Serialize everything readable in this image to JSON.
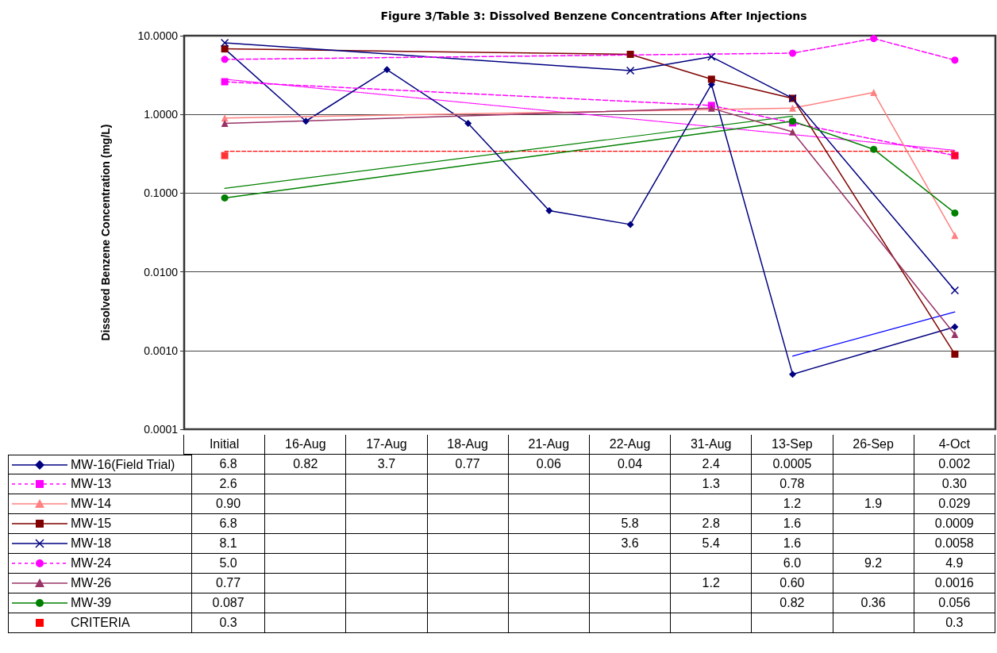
{
  "chart_data": {
    "type": "line",
    "title": "Figure 3/Table 3: Dissolved Benzene Concentrations After Injections",
    "ylabel": "Dissolved Benzene Concentration (mg/L)",
    "categories": [
      "Initial",
      "16-Aug",
      "17-Aug",
      "18-Aug",
      "21-Aug",
      "22-Aug",
      "31-Aug",
      "13-Sep",
      "26-Sep",
      "4-Oct"
    ],
    "log": "y",
    "ylim": [
      0.0001,
      10
    ],
    "yticks": [
      {
        "value": 0.0001,
        "label": "0.0001"
      },
      {
        "value": 0.001,
        "label": "0.0010"
      },
      {
        "value": 0.01,
        "label": "0.0100"
      },
      {
        "value": 0.1,
        "label": "0.1000"
      },
      {
        "value": 1,
        "label": "1.0000"
      },
      {
        "value": 10,
        "label": "10.0000"
      }
    ],
    "grid": "y",
    "legend": "bottom",
    "series": [
      {
        "name": "MW-16(Field Trial)",
        "color": "#000080",
        "marker": "diamond",
        "line_style": "solid",
        "values": [
          6.8,
          0.82,
          3.7,
          0.77,
          0.06,
          0.04,
          2.4,
          0.0005,
          null,
          0.002
        ],
        "value_labels": [
          "6.8",
          "0.82",
          "3.7",
          "0.77",
          "0.06",
          "0.04",
          "2.4",
          "0.0005",
          null,
          "0.002"
        ]
      },
      {
        "name": "MW-13",
        "color": "#ff00ff",
        "marker": "square",
        "line_style": "dashed",
        "values": [
          2.6,
          null,
          null,
          null,
          null,
          null,
          1.3,
          0.78,
          null,
          0.3
        ],
        "value_labels": [
          "2.6",
          null,
          null,
          null,
          null,
          null,
          "1.3",
          "0.78",
          null,
          "0.30"
        ]
      },
      {
        "name": "MW-14",
        "color": "#ff8080",
        "marker": "triangle",
        "line_style": "solid",
        "values": [
          0.9,
          null,
          null,
          null,
          null,
          null,
          null,
          1.2,
          1.9,
          0.029
        ],
        "value_labels": [
          "0.90",
          null,
          null,
          null,
          null,
          null,
          null,
          "1.2",
          "1.9",
          "0.029"
        ]
      },
      {
        "name": "MW-15",
        "color": "#800000",
        "marker": "square",
        "line_style": "solid",
        "values": [
          6.8,
          null,
          null,
          null,
          null,
          5.8,
          2.8,
          1.6,
          null,
          0.0009
        ],
        "value_labels": [
          "6.8",
          null,
          null,
          null,
          null,
          "5.8",
          "2.8",
          "1.6",
          null,
          "0.0009"
        ]
      },
      {
        "name": "MW-18",
        "color": "#000080",
        "marker": "cross",
        "line_style": "solid",
        "values": [
          8.1,
          null,
          null,
          null,
          null,
          3.6,
          5.4,
          1.6,
          null,
          0.0058
        ],
        "value_labels": [
          "8.1",
          null,
          null,
          null,
          null,
          "3.6",
          "5.4",
          "1.6",
          null,
          "0.0058"
        ]
      },
      {
        "name": "MW-24",
        "color": "#ff00ff",
        "marker": "circle",
        "line_style": "dashed",
        "values": [
          5.0,
          null,
          null,
          null,
          null,
          null,
          null,
          6.0,
          9.2,
          4.9
        ],
        "value_labels": [
          "5.0",
          null,
          null,
          null,
          null,
          null,
          null,
          "6.0",
          "9.2",
          "4.9"
        ]
      },
      {
        "name": "MW-26",
        "color": "#993366",
        "marker": "triangle",
        "line_style": "solid",
        "values": [
          0.77,
          null,
          null,
          null,
          null,
          null,
          1.2,
          0.6,
          null,
          0.0016
        ],
        "value_labels": [
          "0.77",
          null,
          null,
          null,
          null,
          null,
          "1.2",
          "0.60",
          null,
          "0.0016"
        ]
      },
      {
        "name": "MW-39",
        "color": "#008000",
        "marker": "circle",
        "line_style": "solid",
        "values": [
          0.087,
          null,
          null,
          null,
          null,
          null,
          null,
          0.82,
          0.36,
          0.056
        ],
        "value_labels": [
          "0.087",
          null,
          null,
          null,
          null,
          null,
          null,
          "0.82",
          "0.36",
          "0.056"
        ]
      },
      {
        "name": "CRITERIA",
        "type": "scatter",
        "color": "#ff0000",
        "marker": "square",
        "values": [
          0.3,
          null,
          null,
          null,
          null,
          null,
          null,
          null,
          null,
          0.3
        ],
        "value_labels": [
          "0.3",
          null,
          null,
          null,
          null,
          null,
          null,
          null,
          null,
          "0.3"
        ]
      },
      {
        "type": "line",
        "color": "#ff0000",
        "line_style": "dashed",
        "marker": "none",
        "x": [
          "Initial",
          "4-Oct"
        ],
        "values": [
          0.34,
          0.34
        ]
      },
      {
        "type": "line",
        "color": "#ff00ff",
        "line_style": "dotted",
        "marker": "none",
        "x": [
          "Initial",
          "4-Oct"
        ],
        "values": [
          2.8,
          0.35
        ]
      },
      {
        "type": "line",
        "color": "#008000",
        "line_style": "solid",
        "marker": "none",
        "x": [
          "Initial",
          "13-Sep"
        ],
        "values": [
          0.115,
          0.95
        ]
      },
      {
        "type": "line",
        "color": "#0000ff",
        "line_style": "solid",
        "marker": "none",
        "x": [
          "13-Sep",
          "4-Oct"
        ],
        "values": [
          0.00085,
          0.0031
        ]
      }
    ]
  }
}
